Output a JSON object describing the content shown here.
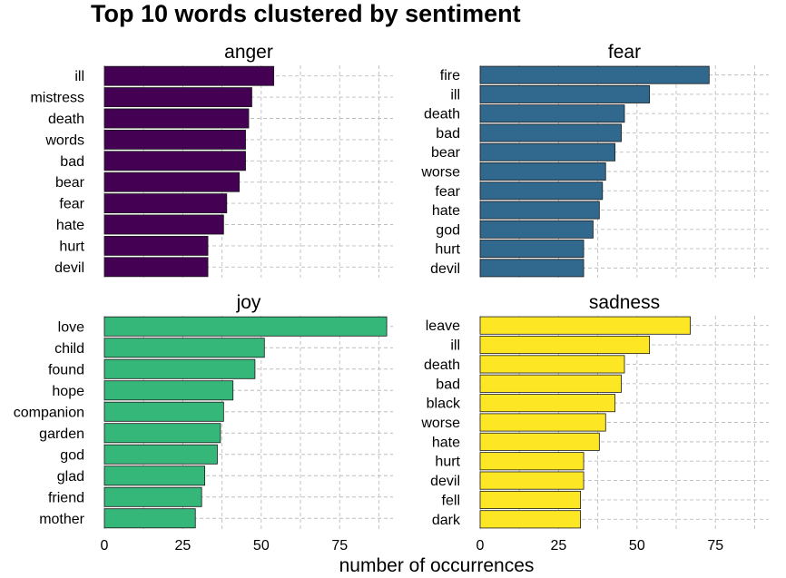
{
  "chart_data": {
    "type": "bar",
    "orientation": "horizontal",
    "title": "Top 10 words clustered by sentiment",
    "xlabel": "number of occurrences",
    "ylabel": "",
    "xlim": [
      0,
      92
    ],
    "x_ticks": [
      0,
      25,
      50,
      75
    ],
    "grid": true,
    "legend": "none",
    "facets": [
      {
        "name": "anger",
        "color": "#440154",
        "categories": [
          "ill",
          "mistress",
          "death",
          "words",
          "bad",
          "bear",
          "fear",
          "hate",
          "hurt",
          "devil"
        ],
        "values": [
          54,
          47,
          46,
          45,
          45,
          43,
          39,
          38,
          33,
          33
        ]
      },
      {
        "name": "fear",
        "color": "#31688E",
        "categories": [
          "fire",
          "ill",
          "death",
          "bad",
          "bear",
          "worse",
          "fear",
          "hate",
          "god",
          "hurt",
          "devil"
        ],
        "values": [
          73,
          54,
          46,
          45,
          43,
          40,
          39,
          38,
          36,
          33,
          33
        ]
      },
      {
        "name": "joy",
        "color": "#35B779",
        "categories": [
          "love",
          "child",
          "found",
          "hope",
          "companion",
          "garden",
          "god",
          "glad",
          "friend",
          "mother"
        ],
        "values": [
          90,
          51,
          48,
          41,
          38,
          37,
          36,
          32,
          31,
          29
        ]
      },
      {
        "name": "sadness",
        "color": "#FDE725",
        "categories": [
          "leave",
          "ill",
          "death",
          "bad",
          "black",
          "worse",
          "hate",
          "hurt",
          "devil",
          "fell",
          "dark"
        ],
        "values": [
          67,
          54,
          46,
          45,
          43,
          40,
          38,
          33,
          33,
          32,
          32
        ]
      }
    ]
  }
}
